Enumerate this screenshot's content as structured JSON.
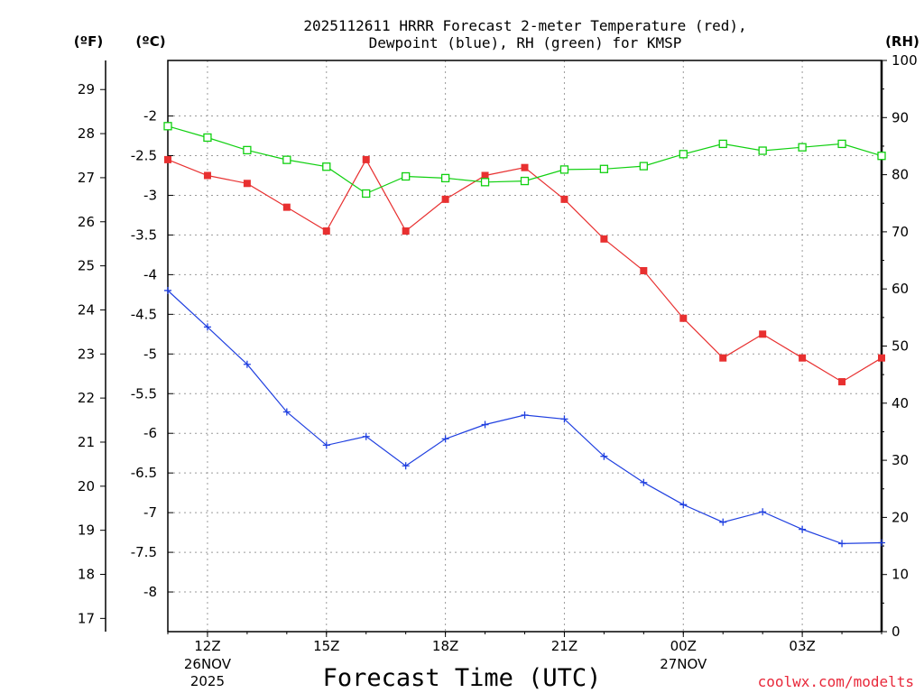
{
  "chart_data": {
    "type": "line",
    "title_line1": "2025112611 HRRR Forecast 2-meter Temperature (red),",
    "title_line2": "Dewpoint (blue), RH (green) for KMSP",
    "xlabel": "Forecast Time (UTC)",
    "credit": "coolwx.com/modelts",
    "unit_labels": {
      "fahrenheit": "(ºF)",
      "celsius": "(ºC)",
      "rh": "(RH)"
    },
    "colors": {
      "temperature": "#e83030",
      "dewpoint": "#2040e0",
      "rh": "#10d010"
    },
    "hours_range": [
      11,
      29
    ],
    "ylim_celsius": [
      -8.5,
      -1.3
    ],
    "ylim_rh": [
      0,
      100
    ],
    "celsius_ticks": [
      "-2",
      "-2.5",
      "-3",
      "-3.5",
      "-4",
      "-4.5",
      "-5",
      "-5.5",
      "-6",
      "-6.5",
      "-7",
      "-7.5",
      "-8"
    ],
    "fahrenheit_ticks": [
      "29",
      "28",
      "27",
      "26",
      "25",
      "24",
      "23",
      "22",
      "21",
      "20",
      "19",
      "18",
      "17"
    ],
    "rh_ticks": [
      "100",
      "90",
      "80",
      "70",
      "60",
      "50",
      "40",
      "30",
      "20",
      "10",
      "0"
    ],
    "x_ticks": [
      {
        "hour": 12,
        "label": "12Z",
        "date": "26NOV",
        "year": "2025"
      },
      {
        "hour": 15,
        "label": "15Z",
        "date": "",
        "year": ""
      },
      {
        "hour": 18,
        "label": "18Z",
        "date": "",
        "year": ""
      },
      {
        "hour": 21,
        "label": "21Z",
        "date": "",
        "year": ""
      },
      {
        "hour": 24,
        "label": "00Z",
        "date": "27NOV",
        "year": ""
      },
      {
        "hour": 27,
        "label": "03Z",
        "date": "",
        "year": ""
      }
    ],
    "series": [
      {
        "name": "Temperature",
        "axis": "celsius",
        "marker": "filled-square",
        "x": [
          11,
          12,
          13,
          14,
          15,
          16,
          17,
          18,
          19,
          20,
          21,
          22,
          23,
          24,
          25,
          26,
          27,
          28,
          29
        ],
        "values": [
          -2.55,
          -2.75,
          -2.85,
          -3.15,
          -3.45,
          -2.55,
          -3.45,
          -3.05,
          -2.75,
          -2.65,
          -3.05,
          -3.55,
          -3.95,
          -4.55,
          -5.05,
          -4.75,
          -5.05,
          -5.35,
          -5.05
        ]
      },
      {
        "name": "Dewpoint",
        "axis": "celsius",
        "marker": "plus",
        "x": [
          11,
          12,
          13,
          14,
          15,
          16,
          17,
          18,
          19,
          20,
          21,
          22,
          23,
          24,
          25,
          26,
          27,
          28,
          29
        ],
        "values": [
          -4.2,
          -4.66,
          -5.13,
          -5.73,
          -6.15,
          -6.04,
          -6.41,
          -6.07,
          -5.89,
          -5.77,
          -5.82,
          -6.29,
          -6.62,
          -6.9,
          -7.12,
          -6.99,
          -7.21,
          -7.39,
          -7.38
        ]
      },
      {
        "name": "RH",
        "axis": "rh",
        "marker": "open-square",
        "x": [
          11,
          12,
          13,
          14,
          15,
          16,
          17,
          18,
          19,
          20,
          21,
          22,
          23,
          24,
          25,
          26,
          27,
          28,
          29
        ],
        "values": [
          88.5,
          86.5,
          84.3,
          82.6,
          81.4,
          76.7,
          79.7,
          79.4,
          78.7,
          78.9,
          80.9,
          81.0,
          81.5,
          83.6,
          85.4,
          84.2,
          84.8,
          85.4,
          83.3
        ]
      }
    ]
  }
}
